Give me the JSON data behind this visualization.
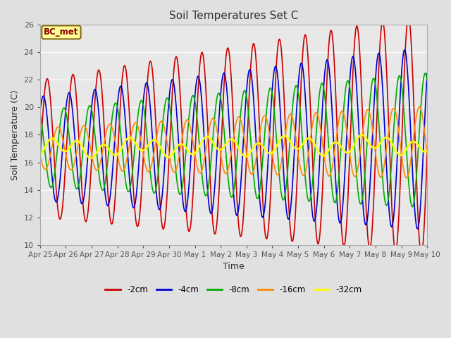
{
  "title": "Soil Temperatures Set C",
  "xlabel": "Time",
  "ylabel": "Soil Temperature (C)",
  "ylim": [
    10,
    26
  ],
  "xlim_start": 0,
  "xlim_end": 15,
  "background_color": "#e0e0e0",
  "plot_bg_color": "#e8e8e8",
  "grid_color": "#ffffff",
  "annotation_text": "BC_met",
  "annotation_bg": "#ffff99",
  "annotation_border": "#8b6914",
  "annotation_text_color": "#8b0000",
  "xtick_labels": [
    "Apr 25",
    "Apr 26",
    "Apr 27",
    "Apr 28",
    "Apr 29",
    "Apr 30",
    "May 1",
    "May 2",
    "May 3",
    "May 4",
    "May 5",
    "May 6",
    "May 7",
    "May 8",
    "May 9",
    "May 10"
  ],
  "xtick_positions": [
    0,
    1,
    2,
    3,
    4,
    5,
    6,
    7,
    8,
    9,
    10,
    11,
    12,
    13,
    14,
    15
  ],
  "ytick_labels": [
    "10",
    "12",
    "14",
    "16",
    "18",
    "20",
    "22",
    "24",
    "26"
  ],
  "ytick_positions": [
    10,
    12,
    14,
    16,
    18,
    20,
    22,
    24,
    26
  ],
  "series": [
    {
      "label": "-2cm",
      "color": "#cc0000",
      "lw": 1.2
    },
    {
      "label": "-4cm",
      "color": "#0000cc",
      "lw": 1.2
    },
    {
      "label": "-8cm",
      "color": "#00aa00",
      "lw": 1.2
    },
    {
      "label": "-16cm",
      "color": "#ff8800",
      "lw": 1.2
    },
    {
      "label": "-32cm",
      "color": "#ffff00",
      "lw": 1.8
    }
  ],
  "n_points": 721,
  "total_days": 15
}
